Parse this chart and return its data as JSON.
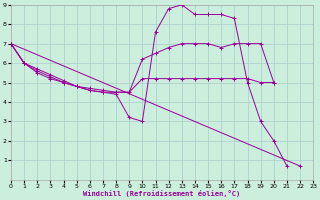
{
  "xlabel": "Windchill (Refroidissement éolien,°C)",
  "bg_color": "#cceedd",
  "grid_color": "#aacccc",
  "line_color_1": "#cc00cc",
  "line_color_2": "#990099",
  "xlim": [
    0,
    23
  ],
  "ylim": [
    0,
    9
  ],
  "xticks": [
    0,
    1,
    2,
    3,
    4,
    5,
    6,
    7,
    8,
    9,
    10,
    11,
    12,
    13,
    14,
    15,
    16,
    17,
    18,
    19,
    20,
    21,
    22,
    23
  ],
  "yticks": [
    1,
    2,
    3,
    4,
    5,
    6,
    7,
    8,
    9
  ],
  "series": [
    {
      "x": [
        0,
        1,
        2,
        3,
        4,
        5,
        6,
        7,
        8,
        9,
        10,
        11,
        12,
        13,
        14,
        15,
        16,
        17,
        18,
        19,
        20,
        21,
        22
      ],
      "y": [
        7.0,
        6.0,
        5.7,
        5.4,
        5.1,
        4.8,
        4.6,
        4.5,
        4.4,
        3.2,
        3.0,
        7.6,
        8.8,
        9.0,
        8.5,
        8.5,
        8.5,
        8.3,
        5.0,
        3.0,
        2.0,
        0.7,
        null
      ]
    },
    {
      "x": [
        0,
        1,
        2,
        3,
        4,
        5,
        6,
        7,
        8,
        9,
        10,
        11,
        12,
        13,
        14,
        15,
        16,
        17,
        18,
        19,
        20
      ],
      "y": [
        7.0,
        6.0,
        5.6,
        5.3,
        5.0,
        4.8,
        4.7,
        4.6,
        4.5,
        4.5,
        6.2,
        6.5,
        6.8,
        7.0,
        7.0,
        7.0,
        6.8,
        7.0,
        7.0,
        7.0,
        5.0
      ]
    },
    {
      "x": [
        0,
        1,
        2,
        3,
        4,
        5,
        6,
        7,
        8,
        9,
        10,
        11,
        12,
        13,
        14,
        15,
        16,
        17,
        18,
        19,
        20
      ],
      "y": [
        7.0,
        6.0,
        5.5,
        5.2,
        5.0,
        4.8,
        4.6,
        4.5,
        4.5,
        4.5,
        5.2,
        5.2,
        5.2,
        5.2,
        5.2,
        5.2,
        5.2,
        5.2,
        5.2,
        5.0,
        5.0
      ]
    },
    {
      "x": [
        0,
        22
      ],
      "y": [
        7.0,
        0.7
      ]
    }
  ]
}
